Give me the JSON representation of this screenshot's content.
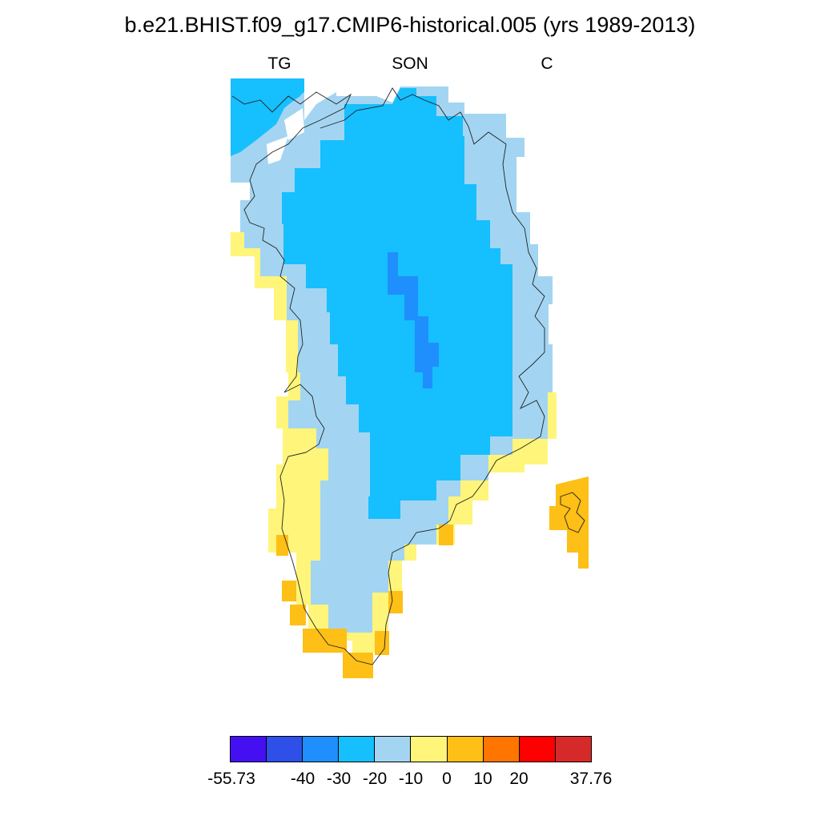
{
  "title": "b.e21.BHIST.f09_g17.CMIP6-historical.005 (yrs 1989-2013)",
  "subtitles": {
    "left": "TG",
    "center": "SON",
    "right": "C"
  },
  "colorbar": {
    "colors": [
      "#4410f2",
      "#2e4fe8",
      "#1f8ffd",
      "#16bffe",
      "#a3d5f2",
      "#fff57a",
      "#febf16",
      "#fe7500",
      "#fe0000",
      "#d62a2a"
    ],
    "labels": [
      "-55.73",
      "-40",
      "-30",
      "-20",
      "-10",
      "0",
      "10",
      "20",
      "37.76"
    ]
  },
  "legend_colors": {
    "below_minus_20": "#16bffe",
    "minus_20_to_minus_10": "#a3d5f2",
    "minus_30_to_minus_20": "#1f8ffd",
    "minus_10_to_0": "#fff57a",
    "zero_to_10": "#febf16"
  }
}
